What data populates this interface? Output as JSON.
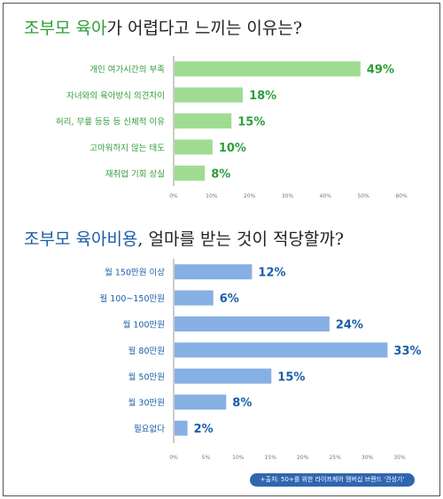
{
  "colors": {
    "green": "#2e9d3a",
    "green_bar": "#9fdc92",
    "blue": "#1a5ea8",
    "blue_bar": "#86b0e3",
    "tick": "#777777"
  },
  "chart_data": [
    {
      "type": "bar",
      "orientation": "horizontal",
      "title_highlight": "조부모 육아",
      "title_rest": "가 어렵다고 느끼는 이유는?",
      "categories": [
        "개인 여가시간의 부족",
        "자녀와의 육아방식 의견차이",
        "허리, 무릎 등등 등 신체적 이유",
        "고마워하지 않는 태도",
        "재취업 기회 상실"
      ],
      "values": [
        49,
        18,
        15,
        10,
        8
      ],
      "value_labels": [
        "49%",
        "18%",
        "15%",
        "10%",
        "8%"
      ],
      "xlim": [
        0,
        60
      ],
      "ticks": [
        "0%",
        "10%",
        "20%",
        "30%",
        "40%",
        "50%",
        "60%"
      ],
      "grid": false
    },
    {
      "type": "bar",
      "orientation": "horizontal",
      "title_highlight": "조부모 육아비용",
      "title_rest": ", 얼마를 받는 것이 적당할까?",
      "categories": [
        "월 150만원 이상",
        "월 100~150만원",
        "월 100만원",
        "월 80만원",
        "월 50만원",
        "월 30만원",
        "필요없다"
      ],
      "values": [
        12,
        6,
        24,
        33,
        15,
        8,
        2
      ],
      "value_labels": [
        "12%",
        "6%",
        "24%",
        "33%",
        "15%",
        "8%",
        "2%"
      ],
      "xlim": [
        0,
        35
      ],
      "ticks": [
        "0%",
        "5%",
        "10%",
        "15%",
        "20%",
        "25%",
        "30%",
        "35%"
      ],
      "grid": false
    }
  ],
  "source": "+출처: 50+를 위한 라이프케어 멤버십 브랜드 '견성기'"
}
